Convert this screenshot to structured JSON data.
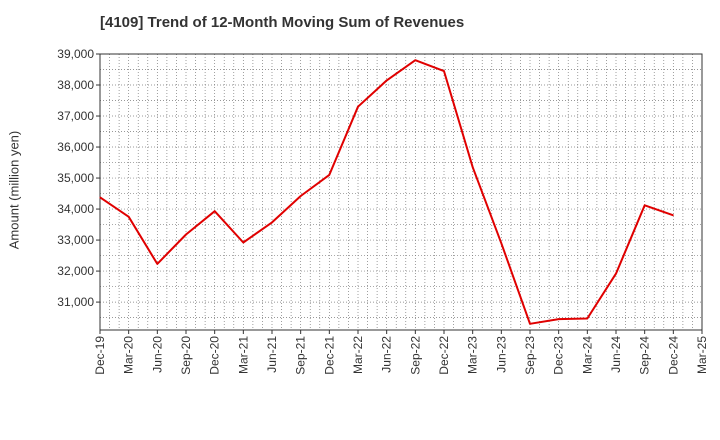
{
  "chart_data": {
    "type": "line",
    "title": "[4109]  Trend of 12-Month Moving Sum of Revenues",
    "ylabel": "Amount (million yen)",
    "xlabel": "",
    "ylim": [
      30100,
      39000
    ],
    "y_ticks": [
      31000,
      32000,
      33000,
      34000,
      35000,
      36000,
      37000,
      38000,
      39000
    ],
    "y_tick_labels": [
      "31,000",
      "32,000",
      "33,000",
      "34,000",
      "35,000",
      "36,000",
      "37,000",
      "38,000",
      "39,000"
    ],
    "categories": [
      "Dec-19",
      "Mar-20",
      "Jun-20",
      "Sep-20",
      "Dec-20",
      "Mar-21",
      "Jun-21",
      "Sep-21",
      "Dec-21",
      "Mar-22",
      "Jun-22",
      "Sep-22",
      "Dec-22",
      "Mar-23",
      "Jun-23",
      "Sep-23",
      "Dec-23",
      "Mar-24",
      "Jun-24",
      "Sep-24",
      "Dec-24",
      "Mar-25"
    ],
    "grid": true,
    "line_color": "#e00000",
    "series": [
      {
        "values": [
          34380,
          33750,
          32230,
          33180,
          33930,
          32920,
          33570,
          34420,
          35100,
          37300,
          38150,
          38800,
          38450,
          35350,
          32900,
          30300,
          30450,
          30470,
          31920,
          34120,
          33800,
          null
        ]
      }
    ]
  }
}
